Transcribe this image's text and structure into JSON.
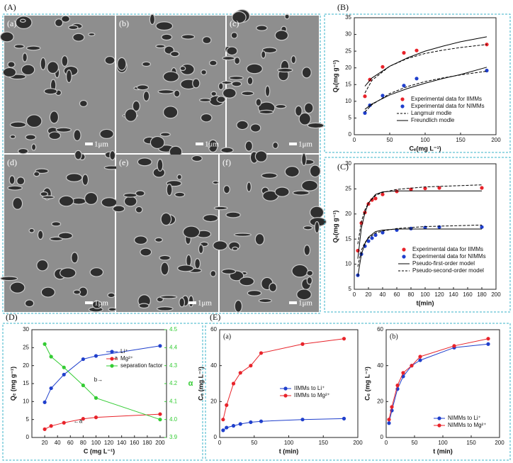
{
  "sem": {
    "panel": "(A)",
    "images": [
      {
        "label": "(a)",
        "scale": "1μm"
      },
      {
        "label": "(b)",
        "scale": "1μm"
      },
      {
        "label": "(c)",
        "scale": "1μm"
      },
      {
        "label": "(d)",
        "scale": "1μm"
      },
      {
        "label": "(e)",
        "scale": "1μm"
      },
      {
        "label": "(f)",
        "scale": "1μm"
      }
    ]
  },
  "chart_data": [
    {
      "type": "scatter",
      "panel": "(B)",
      "x_label": "Cₑ(mg L⁻¹)",
      "y_label": "Qₑ(mg g⁻¹)",
      "xlim": [
        0,
        200
      ],
      "ylim": [
        0,
        35
      ],
      "xticks": [
        0,
        50,
        100,
        150,
        200
      ],
      "yticks": [
        0,
        5,
        10,
        15,
        20,
        25,
        30,
        35
      ],
      "legend": "lower right",
      "series": [
        {
          "name": "Experimental data for IIMMs",
          "color": "#e8232a",
          "mode": "markers",
          "x": [
            15,
            22,
            40,
            70,
            88,
            187
          ],
          "values": [
            11.5,
            16.5,
            20.3,
            24.5,
            25.2,
            27
          ]
        },
        {
          "name": "Experimental data for NIMMs",
          "color": "#1f3fcc",
          "mode": "markers",
          "x": [
            15,
            22,
            40,
            70,
            88,
            187
          ],
          "values": [
            6.5,
            8.8,
            11.7,
            14.7,
            16.8,
            19.2
          ]
        },
        {
          "name": "Langmuir modle",
          "color": "#000000",
          "mode": "line",
          "dash": true,
          "x": [
            15,
            25,
            50,
            75,
            100,
            125,
            150,
            187,
            null,
            15,
            25,
            50,
            75,
            100,
            125,
            150,
            187
          ],
          "values": [
            12.5,
            16.3,
            20.5,
            22.8,
            24.3,
            25.3,
            26.1,
            27,
            null,
            6.8,
            9,
            12.3,
            14.4,
            15.9,
            17,
            17.9,
            19
          ]
        },
        {
          "name": "Freundlich modle",
          "color": "#000000",
          "mode": "line",
          "dash": false,
          "x": [
            15,
            25,
            50,
            75,
            100,
            125,
            150,
            187,
            null,
            15,
            25,
            50,
            75,
            100,
            125,
            150,
            187
          ],
          "values": [
            14.5,
            17,
            20.5,
            23,
            25,
            26.5,
            27.8,
            29.3,
            null,
            7.6,
            9.2,
            11.9,
            13.8,
            15.4,
            16.8,
            18,
            20.2
          ]
        }
      ]
    },
    {
      "type": "scatter",
      "panel": "(C)",
      "x_label": "t(min)",
      "y_label": "Qₑ(mg g⁻¹)",
      "xlim": [
        0,
        200
      ],
      "ylim": [
        5,
        30
      ],
      "xticks": [
        0,
        20,
        40,
        60,
        80,
        100,
        120,
        140,
        160,
        180,
        200
      ],
      "yticks": [
        5,
        10,
        15,
        20,
        25,
        30
      ],
      "legend": "lower right",
      "series": [
        {
          "name": "Experimental data for IIMMs",
          "color": "#e8232a",
          "mode": "markers",
          "x": [
            5,
            10,
            15,
            20,
            25,
            30,
            40,
            60,
            80,
            100,
            120,
            180
          ],
          "values": [
            12.7,
            18.2,
            20.3,
            22,
            22.8,
            23.1,
            23.9,
            24.5,
            24.9,
            25.1,
            25.2,
            25.2
          ]
        },
        {
          "name": "Experimental data for NIMMs",
          "color": "#1f3fcc",
          "mode": "markers",
          "x": [
            5,
            10,
            15,
            20,
            25,
            30,
            40,
            60,
            80,
            100,
            120,
            180
          ],
          "values": [
            7.8,
            12,
            13.6,
            14.6,
            15.2,
            15.8,
            16.3,
            16.8,
            17.1,
            17.3,
            17.4,
            17.4
          ]
        },
        {
          "name": "Pseudo-first-order model",
          "color": "#000000",
          "mode": "line",
          "dash": false,
          "x": [
            5,
            10,
            15,
            20,
            30,
            40,
            60,
            100,
            180,
            null,
            5,
            10,
            15,
            20,
            30,
            40,
            60,
            100,
            180
          ],
          "values": [
            11.1,
            17.2,
            20.2,
            22.2,
            23.9,
            24.4,
            24.6,
            24.6,
            24.6,
            null,
            7.6,
            11.9,
            14.1,
            15.4,
            16.5,
            16.8,
            17,
            17,
            17
          ]
        },
        {
          "name": "Pseudo-second-order model",
          "color": "#000000",
          "mode": "line",
          "dash": true,
          "x": [
            5,
            10,
            15,
            20,
            30,
            40,
            60,
            100,
            180,
            null,
            5,
            10,
            15,
            20,
            30,
            40,
            60,
            100,
            180
          ],
          "values": [
            14,
            18.5,
            20.8,
            22.2,
            23.7,
            24.3,
            24.9,
            25.4,
            25.8,
            null,
            9.5,
            12.8,
            14.3,
            15.2,
            16.2,
            16.6,
            17.1,
            17.5,
            17.8
          ]
        }
      ]
    },
    {
      "type": "line",
      "panel": "(D)",
      "x_label": "C (mg L⁻¹)",
      "y_label": "Qₑ (mg g⁻¹)",
      "y2_label": "α",
      "xlim": [
        0,
        210
      ],
      "ylim": [
        0,
        30
      ],
      "y2lim": [
        3.9,
        4.5
      ],
      "xticks": [
        20,
        40,
        60,
        80,
        100,
        120,
        140,
        160,
        180,
        200
      ],
      "yticks": [
        0,
        5,
        10,
        15,
        20,
        25,
        30
      ],
      "y2ticks": [
        3.9,
        {
          "value": 4,
          "label": "4.0"
        },
        4.1,
        4.2,
        4.3,
        4.4,
        4.5
      ],
      "y2_color": "#33cc33",
      "legend": "center right",
      "annotations": [
        "←a",
        "b→",
        "←a"
      ],
      "series": [
        {
          "name": "Li⁺",
          "color": "#1f3fcc",
          "mode": "markers+line",
          "x": [
            20,
            30,
            50,
            80,
            100,
            200
          ],
          "values": [
            9.8,
            13.7,
            17.5,
            21.8,
            22.7,
            25.5
          ]
        },
        {
          "name": "Mg²⁺",
          "color": "#e8232a",
          "mode": "markers+line",
          "x": [
            20,
            30,
            50,
            80,
            100,
            200
          ],
          "values": [
            2.3,
            3.2,
            4.1,
            5.2,
            5.6,
            6.5
          ]
        },
        {
          "name": "separation factor",
          "color": "#33cc33",
          "mode": "markers+line",
          "axis": "y2",
          "x": [
            20,
            30,
            50,
            80,
            100,
            200
          ],
          "values": [
            4.42,
            4.35,
            4.29,
            4.19,
            4.12,
            4
          ]
        }
      ]
    },
    {
      "type": "line",
      "panel": "(E)",
      "subtitle": "(a)",
      "x_label": "t (min)",
      "y_label": "Cₑ (mg L⁻¹)",
      "xlim": [
        0,
        200
      ],
      "ylim": [
        0,
        60
      ],
      "xticks": [
        0,
        50,
        100,
        150,
        200
      ],
      "yticks": [
        0,
        20,
        40,
        60
      ],
      "legend": "center right",
      "series": [
        {
          "name": "IIMMs to Li⁺",
          "color": "#1f3fcc",
          "mode": "markers+line",
          "x": [
            5,
            10,
            20,
            30,
            45,
            60,
            120,
            180
          ],
          "values": [
            4,
            5.5,
            6.5,
            7.5,
            8.5,
            9,
            10,
            10.5
          ]
        },
        {
          "name": "IIMMs to Mg²⁺",
          "color": "#e8232a",
          "mode": "markers+line",
          "x": [
            5,
            10,
            20,
            30,
            45,
            60,
            120,
            180
          ],
          "values": [
            10,
            18,
            30,
            36,
            40,
            47,
            52,
            55
          ]
        }
      ]
    },
    {
      "type": "line",
      "subtitle": "(b)",
      "x_label": "t (min)",
      "y_label": "Cₑ (mg L⁻¹)",
      "xlim": [
        0,
        200
      ],
      "ylim": [
        0,
        60
      ],
      "xticks": [
        0,
        50,
        100,
        150,
        200
      ],
      "yticks": [
        0,
        20,
        40,
        60
      ],
      "legend": "lower right",
      "series": [
        {
          "name": "NIMMs to Li⁺",
          "color": "#1f3fcc",
          "mode": "markers+line",
          "x": [
            5,
            10,
            20,
            30,
            45,
            60,
            120,
            180
          ],
          "values": [
            8,
            15,
            27,
            34,
            40,
            43,
            50,
            52
          ]
        },
        {
          "name": "NIMMs to Mg²⁺",
          "color": "#e8232a",
          "mode": "markers+line",
          "x": [
            5,
            10,
            20,
            30,
            45,
            60,
            120,
            180
          ],
          "values": [
            10,
            17,
            29,
            36,
            40,
            45,
            51,
            55
          ]
        }
      ]
    }
  ]
}
